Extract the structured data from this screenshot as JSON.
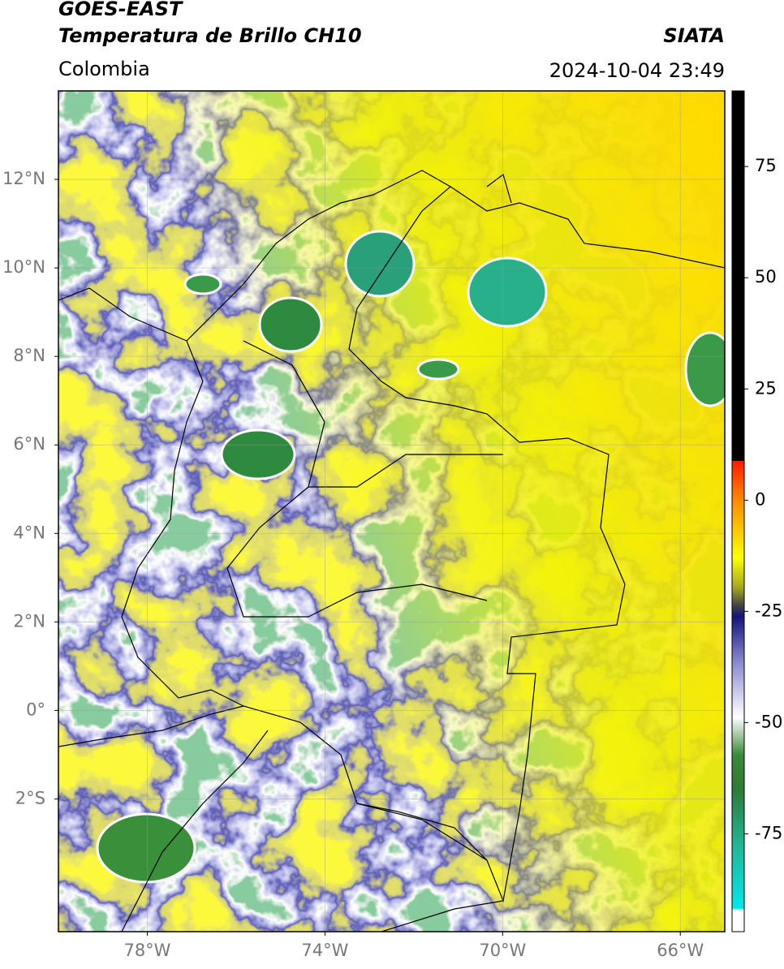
{
  "header": {
    "title": "GOES-EAST",
    "product": "Temperatura de Brillo CH10",
    "source": "SIATA",
    "region": "Colombia",
    "datetime": "2024-10-04 23:49"
  },
  "chart_data": {
    "type": "map",
    "xlim": [
      -80,
      -65
    ],
    "ylim": [
      -5,
      14
    ],
    "xticks": [
      {
        "value": -78,
        "label": "78°W"
      },
      {
        "value": -74,
        "label": "74°W"
      },
      {
        "value": -70,
        "label": "70°W"
      },
      {
        "value": -66,
        "label": "66°W"
      }
    ],
    "yticks": [
      {
        "value": 12,
        "label": "12°N"
      },
      {
        "value": 10,
        "label": "10°N"
      },
      {
        "value": 8,
        "label": "8°N"
      },
      {
        "value": 6,
        "label": "6°N"
      },
      {
        "value": 4,
        "label": "4°N"
      },
      {
        "value": 2,
        "label": "2°N"
      },
      {
        "value": 0,
        "label": "0°"
      },
      {
        "value": -2,
        "label": "2°S"
      }
    ],
    "grid": true,
    "colorbar": {
      "lim": [
        -97,
        92
      ],
      "ticks": [
        75,
        50,
        25,
        0,
        -25,
        -50,
        -75
      ]
    }
  }
}
